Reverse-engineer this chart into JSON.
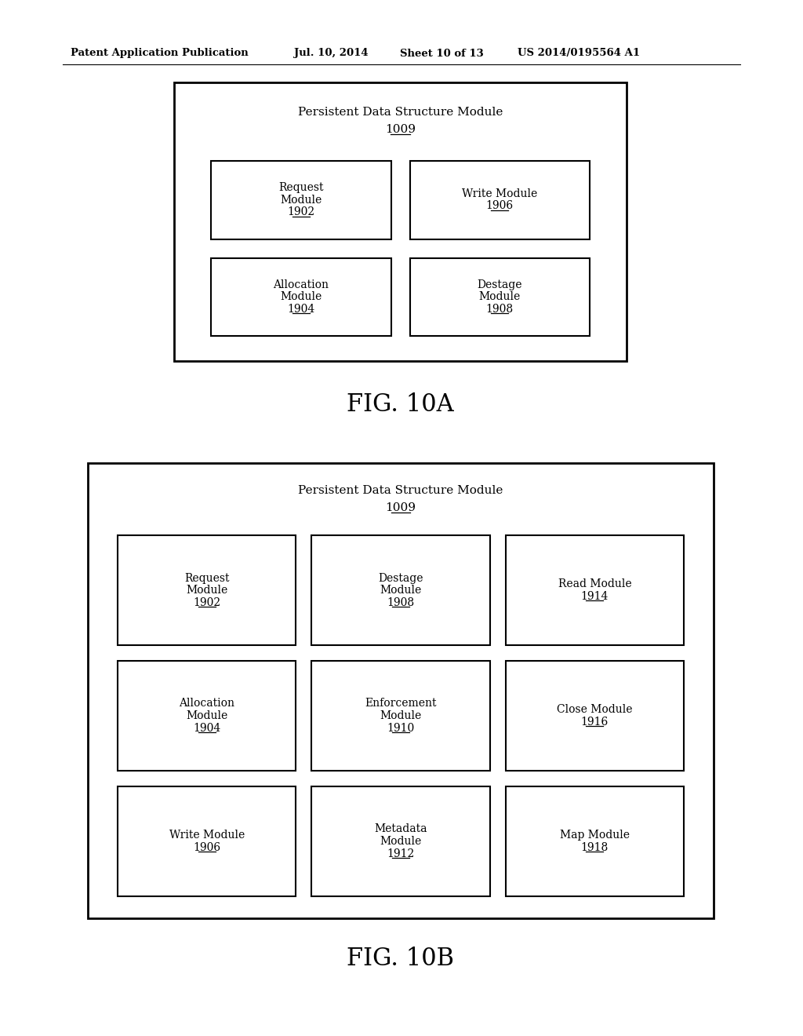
{
  "background_color": "#ffffff",
  "header_text": "Patent Application Publication",
  "header_date": "Jul. 10, 2014",
  "header_sheet": "Sheet 10 of 13",
  "header_patent": "US 2014/0195564 A1",
  "fig_a_title_line1": "Persistent Data Structure Module",
  "fig_a_title_line2": "1009",
  "fig_a_caption": "FIG. 10A",
  "fig_a_modules": [
    {
      "lines": [
        "Request",
        "Module",
        "1902"
      ],
      "underline": "1902",
      "col": 0,
      "row": 0
    },
    {
      "lines": [
        "Write Module",
        "1906"
      ],
      "underline": "1906",
      "col": 1,
      "row": 0
    },
    {
      "lines": [
        "Allocation",
        "Module",
        "1904"
      ],
      "underline": "1904",
      "col": 0,
      "row": 1
    },
    {
      "lines": [
        "Destage",
        "Module",
        "1908"
      ],
      "underline": "1908",
      "col": 1,
      "row": 1
    }
  ],
  "fig_b_title_line1": "Persistent Data Structure Module",
  "fig_b_title_line2": "1009",
  "fig_b_caption": "FIG. 10B",
  "fig_b_modules": [
    {
      "lines": [
        "Request",
        "Module",
        "1902"
      ],
      "underline": "1902",
      "col": 0,
      "row": 0
    },
    {
      "lines": [
        "Destage",
        "Module",
        "1908"
      ],
      "underline": "1908",
      "col": 1,
      "row": 0
    },
    {
      "lines": [
        "Read Module",
        "1914"
      ],
      "underline": "1914",
      "col": 2,
      "row": 0
    },
    {
      "lines": [
        "Allocation",
        "Module",
        "1904"
      ],
      "underline": "1904",
      "col": 0,
      "row": 1
    },
    {
      "lines": [
        "Enforcement",
        "Module",
        "1910"
      ],
      "underline": "1910",
      "col": 1,
      "row": 1
    },
    {
      "lines": [
        "Close Module",
        "1916"
      ],
      "underline": "1916",
      "col": 2,
      "row": 1
    },
    {
      "lines": [
        "Write Module",
        "1906"
      ],
      "underline": "1906",
      "col": 0,
      "row": 2
    },
    {
      "lines": [
        "Metadata",
        "Module",
        "1912"
      ],
      "underline": "1912",
      "col": 1,
      "row": 2
    },
    {
      "lines": [
        "Map Module",
        "1918"
      ],
      "underline": "1918",
      "col": 2,
      "row": 2
    }
  ]
}
